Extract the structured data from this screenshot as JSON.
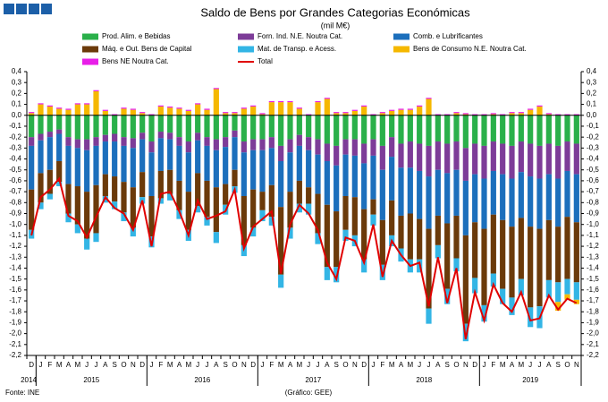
{
  "chart_data": {
    "type": "bar",
    "title": "Saldo de Bens por Grandes Categorias Económicas",
    "subtitle": "(mil M€)",
    "source": "Fonte: INE",
    "credit": "(Gráfico: GEE)",
    "stacked": true,
    "categories": [
      "D",
      "J",
      "F",
      "M",
      "A",
      "M",
      "J",
      "J",
      "A",
      "S",
      "O",
      "N",
      "D",
      "J",
      "F",
      "M",
      "A",
      "M",
      "J",
      "J",
      "A",
      "S",
      "O",
      "N",
      "D",
      "J",
      "F",
      "M",
      "A",
      "M",
      "J",
      "J",
      "A",
      "S",
      "O",
      "N",
      "D",
      "J",
      "F",
      "M",
      "A",
      "M",
      "J",
      "J",
      "A",
      "S",
      "O",
      "N",
      "D",
      "J",
      "F",
      "M",
      "A",
      "M",
      "J",
      "J",
      "A",
      "S",
      "O",
      "N"
    ],
    "years": [
      "2014",
      "2015",
      "2016",
      "2017",
      "2018",
      "2019"
    ],
    "series": [
      {
        "name": "Prod. Alim. e Bebidas",
        "color": "#2ab04a",
        "values": [
          -0.2,
          -0.17,
          -0.15,
          -0.13,
          -0.2,
          -0.22,
          -0.22,
          -0.2,
          -0.18,
          -0.17,
          -0.2,
          -0.21,
          -0.16,
          -0.24,
          -0.15,
          -0.16,
          -0.2,
          -0.24,
          -0.16,
          -0.2,
          -0.22,
          -0.2,
          -0.14,
          -0.24,
          -0.22,
          -0.22,
          -0.2,
          -0.28,
          -0.22,
          -0.18,
          -0.2,
          -0.22,
          -0.26,
          -0.28,
          -0.22,
          -0.22,
          -0.26,
          -0.22,
          -0.28,
          -0.2,
          -0.26,
          -0.24,
          -0.26,
          -0.28,
          -0.24,
          -0.26,
          -0.24,
          -0.3,
          -0.26,
          -0.28,
          -0.24,
          -0.26,
          -0.28,
          -0.24,
          -0.26,
          -0.28,
          -0.26,
          -0.28,
          -0.24,
          -0.26
        ]
      },
      {
        "name": "Forn. Ind. N.E. Noutra Cat.",
        "color": "#7d3c98",
        "values": [
          -0.08,
          -0.06,
          -0.05,
          -0.04,
          -0.08,
          -0.08,
          -0.1,
          -0.08,
          -0.06,
          -0.07,
          -0.08,
          -0.09,
          -0.06,
          -0.1,
          -0.06,
          -0.06,
          -0.08,
          -0.1,
          -0.07,
          -0.08,
          -0.1,
          -0.09,
          -0.06,
          -0.1,
          -0.1,
          -0.1,
          -0.1,
          -0.14,
          -0.12,
          -0.1,
          -0.12,
          -0.14,
          -0.16,
          -0.18,
          -0.14,
          -0.15,
          -0.18,
          -0.15,
          -0.22,
          -0.18,
          -0.22,
          -0.24,
          -0.25,
          -0.28,
          -0.26,
          -0.27,
          -0.26,
          -0.3,
          -0.28,
          -0.3,
          -0.27,
          -0.28,
          -0.3,
          -0.28,
          -0.3,
          -0.3,
          -0.28,
          -0.3,
          -0.27,
          -0.28
        ]
      },
      {
        "name": "Comb. e Lubrificantes",
        "color": "#1c6fbc",
        "values": [
          -0.4,
          -0.3,
          -0.3,
          -0.25,
          -0.35,
          -0.35,
          -0.38,
          -0.36,
          -0.3,
          -0.32,
          -0.33,
          -0.36,
          -0.3,
          -0.4,
          -0.3,
          -0.28,
          -0.32,
          -0.36,
          -0.3,
          -0.32,
          -0.34,
          -0.34,
          -0.3,
          -0.4,
          -0.36,
          -0.38,
          -0.34,
          -0.42,
          -0.36,
          -0.32,
          -0.34,
          -0.36,
          -0.4,
          -0.42,
          -0.38,
          -0.38,
          -0.42,
          -0.4,
          -0.46,
          -0.4,
          -0.44,
          -0.42,
          -0.44,
          -0.48,
          -0.42,
          -0.46,
          -0.42,
          -0.5,
          -0.44,
          -0.46,
          -0.4,
          -0.42,
          -0.44,
          -0.42,
          -0.46,
          -0.46,
          -0.42,
          -0.44,
          -0.42,
          -0.44
        ]
      },
      {
        "name": "Máq. e Out. Bens de Capital",
        "color": "#6b3a0a",
        "values": [
          -0.37,
          -0.27,
          -0.22,
          -0.19,
          -0.27,
          -0.35,
          -0.43,
          -0.44,
          -0.2,
          -0.23,
          -0.28,
          -0.37,
          -0.23,
          -0.37,
          -0.25,
          -0.22,
          -0.27,
          -0.35,
          -0.3,
          -0.33,
          -0.41,
          -0.19,
          -0.15,
          -0.45,
          -0.35,
          -0.17,
          -0.29,
          -0.62,
          -0.33,
          -0.21,
          -0.15,
          -0.36,
          -0.57,
          -0.51,
          -0.31,
          -0.35,
          -0.46,
          -0.14,
          -0.41,
          -0.32,
          -0.3,
          -0.42,
          -0.37,
          -0.73,
          -0.27,
          -0.6,
          -0.39,
          -0.81,
          -0.51,
          -0.7,
          -0.54,
          -0.63,
          -0.65,
          -0.56,
          -0.74,
          -0.71,
          -0.55,
          -0.51,
          -0.57,
          -0.55
        ]
      },
      {
        "name": "Mat. de Transp. e Acess.",
        "color": "#33b5e5",
        "values": [
          -0.08,
          -0.06,
          -0.05,
          -0.04,
          -0.08,
          -0.08,
          -0.1,
          -0.08,
          -0.06,
          -0.07,
          -0.08,
          -0.08,
          -0.06,
          -0.1,
          -0.05,
          -0.06,
          -0.08,
          -0.1,
          -0.06,
          -0.08,
          -0.1,
          -0.09,
          -0.06,
          -0.1,
          -0.08,
          -0.1,
          -0.08,
          -0.12,
          -0.1,
          -0.08,
          -0.1,
          -0.1,
          -0.12,
          -0.14,
          -0.1,
          -0.1,
          -0.12,
          -0.1,
          -0.14,
          -0.1,
          -0.12,
          -0.12,
          -0.12,
          -0.14,
          -0.12,
          -0.14,
          -0.12,
          -0.16,
          -0.14,
          -0.15,
          -0.12,
          -0.14,
          -0.16,
          -0.15,
          -0.18,
          -0.2,
          -0.16,
          -0.18,
          -0.14,
          -0.16
        ]
      },
      {
        "name": "Bens de Consumo N.E. Noutra Cat.",
        "color": "#f5b800",
        "values": [
          0.02,
          0.1,
          0.08,
          0.06,
          0.05,
          0.1,
          0.1,
          0.22,
          0.04,
          0.0,
          0.06,
          0.05,
          0.02,
          0.0,
          0.08,
          0.07,
          0.06,
          0.04,
          0.1,
          0.05,
          0.24,
          0.02,
          0.02,
          0.06,
          0.08,
          0.01,
          0.12,
          0.12,
          0.12,
          0.06,
          0.0,
          0.12,
          0.15,
          0.02,
          0.02,
          0.04,
          0.08,
          0.0,
          0.02,
          0.04,
          0.05,
          0.05,
          0.08,
          0.15,
          0.0,
          0.0,
          0.02,
          0.01,
          0.0,
          0.0,
          0.01,
          0.0,
          0.02,
          0.02,
          0.05,
          0.08,
          0.01,
          -0.08,
          -0.05,
          -0.04
        ]
      },
      {
        "name": "Bens NE Noutra Cat.",
        "color": "#e81ee8",
        "values": [
          0.01,
          0.01,
          0.01,
          0.01,
          0.01,
          0.01,
          0.01,
          0.01,
          0.01,
          0.01,
          0.01,
          0.01,
          0.01,
          0.01,
          0.01,
          0.01,
          0.01,
          0.01,
          0.01,
          0.01,
          0.01,
          0.01,
          0.01,
          0.01,
          0.01,
          0.01,
          0.01,
          0.01,
          0.01,
          0.01,
          0.01,
          0.01,
          0.01,
          0.01,
          0.01,
          0.01,
          0.01,
          0.01,
          0.01,
          0.01,
          0.01,
          0.01,
          0.01,
          0.01,
          0.01,
          0.01,
          0.01,
          0.01,
          0.01,
          0.01,
          0.01,
          0.01,
          0.01,
          0.01,
          0.01,
          0.01,
          0.01,
          0.01,
          0.01,
          0.01
        ]
      }
    ],
    "line_series": {
      "name": "Total",
      "color": "#e00000",
      "values": [
        -1.1,
        -0.75,
        -0.68,
        -0.58,
        -0.92,
        -0.97,
        -1.12,
        -0.93,
        -0.75,
        -0.85,
        -0.9,
        -1.05,
        -0.78,
        -1.2,
        -0.72,
        -0.7,
        -0.88,
        -1.1,
        -0.78,
        -0.95,
        -0.92,
        -0.88,
        -0.68,
        -1.22,
        -1.02,
        -0.95,
        -0.88,
        -1.45,
        -1.0,
        -0.82,
        -0.9,
        -1.05,
        -1.35,
        -1.5,
        -1.12,
        -1.15,
        -1.35,
        -1.0,
        -1.48,
        -1.15,
        -1.28,
        -1.38,
        -1.35,
        -1.75,
        -1.3,
        -1.72,
        -1.4,
        -2.05,
        -1.62,
        -1.88,
        -1.55,
        -1.72,
        -1.8,
        -1.62,
        -1.88,
        -1.86,
        -1.65,
        -1.78,
        -1.68,
        -1.72
      ]
    },
    "ylim": [
      -2.2,
      0.4
    ],
    "yticks": [
      {
        "value": 0.4,
        "label": "0,4"
      },
      {
        "value": 0.3,
        "label": "0,3"
      },
      {
        "value": 0.2,
        "label": "0,2"
      },
      {
        "value": 0.1,
        "label": "0,1"
      },
      {
        "value": 0,
        "label": "0,0"
      },
      {
        "value": -0.1,
        "label": "-0,1"
      },
      {
        "value": -0.2,
        "label": "-0,2"
      },
      {
        "value": -0.3,
        "label": "-0,3"
      },
      {
        "value": -0.4,
        "label": "-0,4"
      },
      {
        "value": -0.5,
        "label": "-0,5"
      },
      {
        "value": -0.6,
        "label": "-0,6"
      },
      {
        "value": -0.7,
        "label": "-0,7"
      },
      {
        "value": -0.8,
        "label": "-0,8"
      },
      {
        "value": -0.9,
        "label": "-0,9"
      },
      {
        "value": -1,
        "label": "-1,0"
      },
      {
        "value": -1.1,
        "label": "-1,1"
      },
      {
        "value": -1.2,
        "label": "-1,2"
      },
      {
        "value": -1.3,
        "label": "-1,3"
      },
      {
        "value": -1.4,
        "label": "-1,4"
      },
      {
        "value": -1.5,
        "label": "-1,5"
      },
      {
        "value": -1.6,
        "label": "-1,6"
      },
      {
        "value": -1.7,
        "label": "-1,7"
      },
      {
        "value": -1.8,
        "label": "-1,8"
      },
      {
        "value": -1.9,
        "label": "-1,9"
      },
      {
        "value": -2,
        "label": "-2,0"
      },
      {
        "value": -2.1,
        "label": "-2,1"
      },
      {
        "value": -2.2,
        "label": "-2,2"
      }
    ],
    "grid": false
  }
}
